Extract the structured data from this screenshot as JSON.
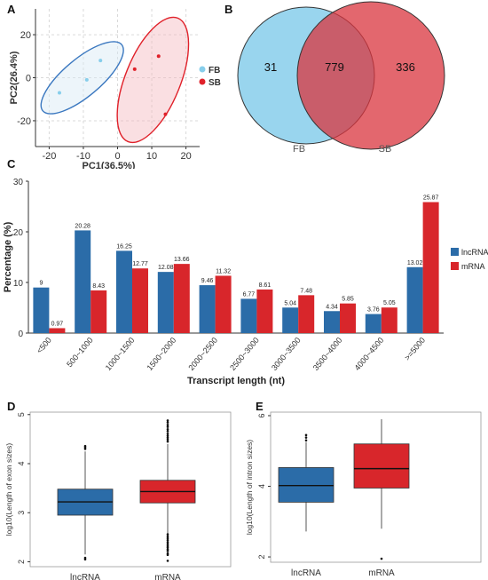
{
  "panels": {
    "a": "A",
    "b": "B",
    "c": "C",
    "d": "D",
    "e": "E"
  },
  "colors": {
    "fb_light": "#87CEEB",
    "fb_dark": "#3B78C0",
    "sb": "#E0212A",
    "sb_fill": "#F5B8BE",
    "lnc": "#2B6CA8",
    "mrna": "#D8262B",
    "grid": "#d9d9d9"
  },
  "chart_data": [
    {
      "type": "scatter",
      "id": "pca",
      "xlabel": "PC1(36.5%)",
      "ylabel": "PC2(26.4%)",
      "xlim": [
        -24,
        24
      ],
      "ylim": [
        -32,
        32
      ],
      "xticks": [
        -20,
        -10,
        0,
        10,
        20
      ],
      "yticks": [
        -20,
        0,
        20
      ],
      "grid": true,
      "legend": "right",
      "series": [
        {
          "name": "FB",
          "points": [
            [
              -17,
              -7
            ],
            [
              -9,
              -1
            ],
            [
              -5,
              8
            ]
          ]
        },
        {
          "name": "SB",
          "points": [
            [
              5,
              4
            ],
            [
              12,
              10
            ],
            [
              14,
              -17
            ]
          ]
        }
      ]
    },
    {
      "type": "venn",
      "id": "venn",
      "sets": [
        {
          "name": "FB",
          "only": 31
        },
        {
          "name": "SB",
          "only": 336
        }
      ],
      "intersection": 779
    },
    {
      "type": "bar",
      "id": "length",
      "xlabel": "Transcript length (nt)",
      "ylabel": "Percentage (%)",
      "ylim": [
        0,
        30
      ],
      "yticks": [
        0,
        10,
        20,
        30
      ],
      "legend": "right",
      "categories": [
        "<500",
        "500~1000",
        "1000~1500",
        "1500~2000",
        "2000~2500",
        "2500~3000",
        "3000~3500",
        "3500~4000",
        "4000~4500",
        ">=5000"
      ],
      "series": [
        {
          "name": "lncRNA",
          "values": [
            9,
            20.28,
            16.25,
            12.08,
            9.46,
            6.77,
            5.04,
            4.34,
            3.76,
            13.02
          ]
        },
        {
          "name": "mRNA",
          "values": [
            0.97,
            8.43,
            12.77,
            13.66,
            11.32,
            8.61,
            7.48,
            5.85,
            5.05,
            25.87
          ]
        }
      ]
    },
    {
      "type": "box",
      "id": "exon",
      "ylabel": "log10(Length of exon sizes)",
      "ylim": [
        1.9,
        5.05
      ],
      "yticks": [
        2,
        3,
        4,
        5
      ],
      "categories": [
        "lncRNA",
        "mRNA"
      ],
      "boxes": [
        {
          "name": "lncRNA",
          "min": 2.15,
          "q1": 2.95,
          "median": 3.22,
          "q3": 3.48,
          "max": 4.25,
          "outliers": [
            2.05,
            2.08,
            4.3,
            4.33,
            4.36
          ]
        },
        {
          "name": "mRNA",
          "min": 2.2,
          "q1": 3.2,
          "median": 3.43,
          "q3": 3.66,
          "max": 4.4,
          "outliers": [
            2.02,
            2.14,
            2.17,
            2.22,
            2.25,
            2.29,
            2.32,
            2.36,
            2.4,
            2.44,
            2.48,
            2.52,
            2.56,
            4.45,
            4.49,
            4.53,
            4.57,
            4.61,
            4.66,
            4.7,
            4.75,
            4.79,
            4.84,
            4.88
          ]
        }
      ]
    },
    {
      "type": "box",
      "id": "intron",
      "ylabel": "log10(Length of intron sizes)",
      "ylim": [
        1.85,
        6.1
      ],
      "yticks": [
        2,
        4,
        6
      ],
      "categories": [
        "lncRNA",
        "mRNA"
      ],
      "boxes": [
        {
          "name": "lncRNA",
          "min": 2.72,
          "q1": 3.55,
          "median": 4.02,
          "q3": 4.53,
          "max": 5.25,
          "outliers": [
            5.3,
            5.38,
            5.45
          ]
        },
        {
          "name": "mRNA",
          "min": 2.8,
          "q1": 3.95,
          "median": 4.5,
          "q3": 5.2,
          "max": 5.9,
          "outliers": [
            1.95
          ]
        }
      ]
    }
  ]
}
